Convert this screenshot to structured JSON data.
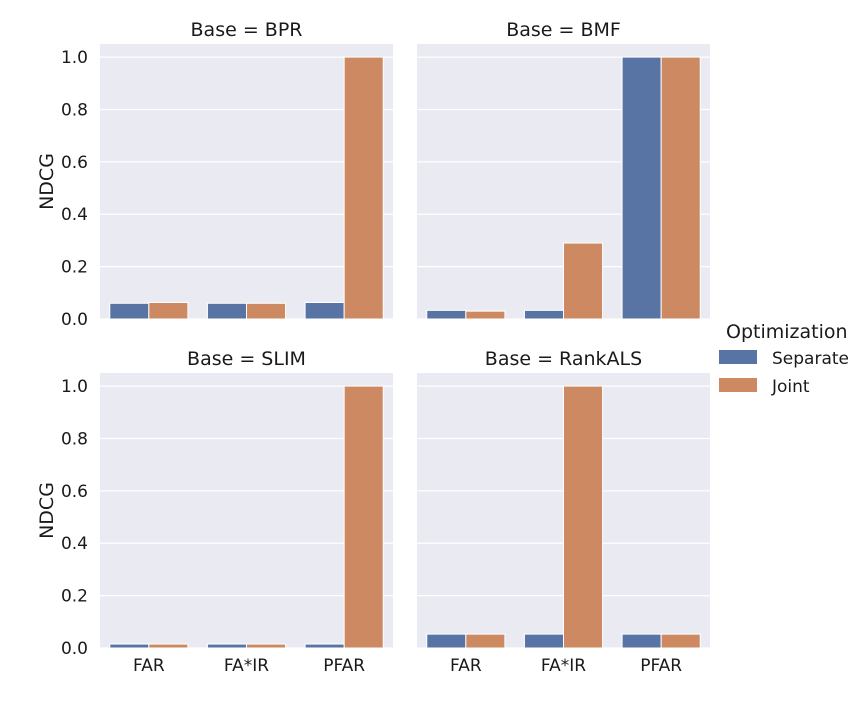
{
  "chart_data": {
    "type": "bar",
    "ylabel": "NDCG",
    "ylim": [
      0,
      1.05
    ],
    "yticks": [
      "0.0",
      "0.2",
      "0.4",
      "0.6",
      "0.8",
      "1.0"
    ],
    "ytick_values": [
      0,
      0.2,
      0.4,
      0.6,
      0.8,
      1.0
    ],
    "categories": [
      "FAR",
      "FA*IR",
      "PFAR"
    ],
    "grid": true,
    "legend": {
      "title": "Optimization",
      "placement": "right",
      "entries": [
        {
          "name": "Separate",
          "color": "#5874a4"
        },
        {
          "name": "Joint",
          "color": "#cc8962"
        }
      ]
    },
    "panels": [
      {
        "title": "Base = BPR",
        "series": [
          {
            "name": "Separate",
            "values": [
              0.06,
              0.06,
              0.063
            ]
          },
          {
            "name": "Joint",
            "values": [
              0.063,
              0.06,
              1.0
            ]
          }
        ]
      },
      {
        "title": "Base = BMF",
        "series": [
          {
            "name": "Separate",
            "values": [
              0.033,
              0.033,
              1.0
            ]
          },
          {
            "name": "Joint",
            "values": [
              0.03,
              0.29,
              1.0
            ]
          }
        ]
      },
      {
        "title": "Base = SLIM",
        "series": [
          {
            "name": "Separate",
            "values": [
              0.015,
              0.015,
              0.015
            ]
          },
          {
            "name": "Joint",
            "values": [
              0.015,
              0.015,
              1.0
            ]
          }
        ]
      },
      {
        "title": "Base = RankALS",
        "series": [
          {
            "name": "Separate",
            "values": [
              0.053,
              0.053,
              0.053
            ]
          },
          {
            "name": "Joint",
            "values": [
              0.053,
              1.0,
              0.053
            ]
          }
        ]
      }
    ]
  }
}
